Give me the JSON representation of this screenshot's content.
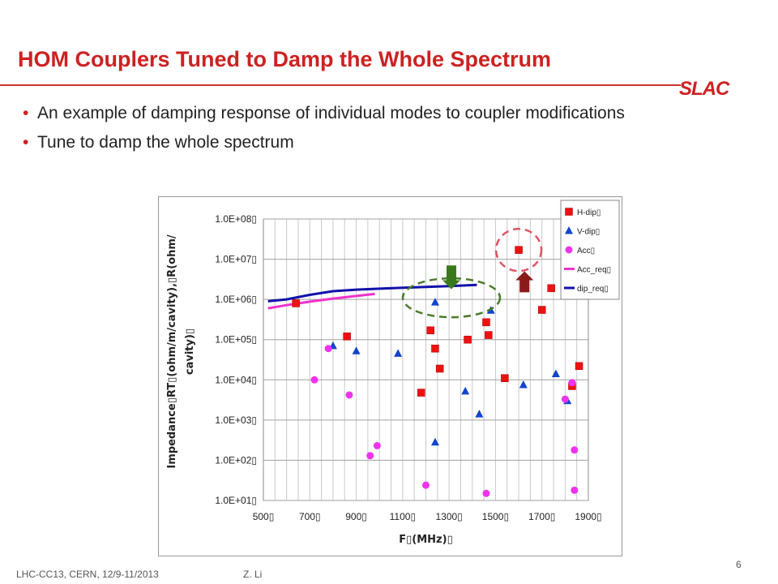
{
  "slide": {
    "title": "HOM Couplers Tuned to Damp the Whole Spectrum",
    "logo": "SLAC",
    "bullets": [
      "An example of damping response of individual modes to coupler modifications",
      "Tune to damp the whole spectrum"
    ],
    "footer_left": "LHC-CC13, CERN, 12/9-11/2013",
    "footer_author": "Z. Li",
    "page_number": "6"
  },
  "chart_data": {
    "type": "scatter",
    "title": "",
    "xlabel": "F▯(MHz)▯",
    "ylabel_lines": [
      "Impedance▯RT▯(ohm/m/cavity),▯R(ohm/",
      "cavity)▯"
    ],
    "x_scale": "linear",
    "y_scale": "log",
    "xlim": [
      500,
      1900
    ],
    "ylim": [
      10,
      100000000
    ],
    "x_ticks": [
      500,
      700,
      900,
      1100,
      1300,
      1500,
      1700,
      1900
    ],
    "x_tick_labels": [
      "500▯",
      "700▯",
      "900▯",
      "1100▯",
      "1300▯",
      "1500▯",
      "1700▯",
      "1900▯"
    ],
    "y_ticks": [
      10,
      100,
      1000,
      10000,
      100000,
      1000000,
      10000000,
      100000000
    ],
    "y_tick_labels": [
      "1.0E+01▯",
      "1.0E+02▯",
      "1.0E+03▯",
      "1.0E+04▯",
      "1.0E+05▯",
      "1.0E+06▯",
      "1.0E+07▯",
      "1.0E+08▯"
    ],
    "grid": true,
    "legend_position": "top-right",
    "series": [
      {
        "name": "H-dip▯",
        "marker": "square",
        "color": "#ee1111",
        "points": [
          [
            640,
            800000
          ],
          [
            860,
            120000
          ],
          [
            1180,
            4800
          ],
          [
            1220,
            170000
          ],
          [
            1240,
            60000
          ],
          [
            1260,
            19000
          ],
          [
            1380,
            100000
          ],
          [
            1460,
            270000
          ],
          [
            1470,
            130000
          ],
          [
            1540,
            11000
          ],
          [
            1600,
            17000000
          ],
          [
            1700,
            550000
          ],
          [
            1740,
            1900000
          ],
          [
            1830,
            7000
          ],
          [
            1860,
            22000
          ]
        ]
      },
      {
        "name": "V-dip▯",
        "marker": "triangle",
        "color": "#1144cc",
        "points": [
          [
            800,
            70000
          ],
          [
            900,
            52000
          ],
          [
            1080,
            45000
          ],
          [
            1240,
            850000
          ],
          [
            1240,
            280
          ],
          [
            1370,
            5200
          ],
          [
            1430,
            1400
          ],
          [
            1480,
            530000
          ],
          [
            1620,
            7500
          ],
          [
            1760,
            14000
          ],
          [
            1810,
            3000
          ]
        ]
      },
      {
        "name": "Acc▯",
        "marker": "circle",
        "color": "#ee33ee",
        "points": [
          [
            720,
            10000
          ],
          [
            780,
            60000
          ],
          [
            870,
            4200
          ],
          [
            960,
            130
          ],
          [
            990,
            230
          ],
          [
            1200,
            24
          ],
          [
            1460,
            15
          ],
          [
            1800,
            3300
          ],
          [
            1830,
            8500
          ],
          [
            1840,
            180
          ],
          [
            1840,
            18
          ]
        ]
      },
      {
        "name": "Acc_req▯",
        "marker": "line",
        "color": "#ee33cc",
        "points": [
          [
            520,
            600000
          ],
          [
            600,
            720000
          ],
          [
            700,
            880000
          ],
          [
            800,
            1050000
          ],
          [
            900,
            1220000
          ],
          [
            980,
            1370000
          ]
        ]
      },
      {
        "name": "dip_req▯",
        "marker": "line",
        "color": "#1111aa",
        "points": [
          [
            520,
            900000
          ],
          [
            600,
            1000000
          ],
          [
            700,
            1300000
          ],
          [
            800,
            1600000
          ],
          [
            900,
            1750000
          ],
          [
            1000,
            1850000
          ],
          [
            1100,
            1950000
          ],
          [
            1200,
            2050000
          ],
          [
            1300,
            2150000
          ],
          [
            1420,
            2300000
          ]
        ]
      }
    ],
    "annotations": {
      "green_dashed_ellipse": {
        "cx": 1310,
        "cy": 1100000
      },
      "red_dashed_circle": {
        "cx": 1600,
        "cy": 17000000
      },
      "green_arrow": {
        "x": 1310,
        "y_tail": 7000000,
        "y_head": 1800000,
        "direction": "down",
        "color": "#3a7a1c"
      },
      "red_arrow": {
        "x": 1625,
        "y_tail": 1500000,
        "y_head": 5000000,
        "direction": "up",
        "color": "#8b1a1a"
      }
    }
  }
}
